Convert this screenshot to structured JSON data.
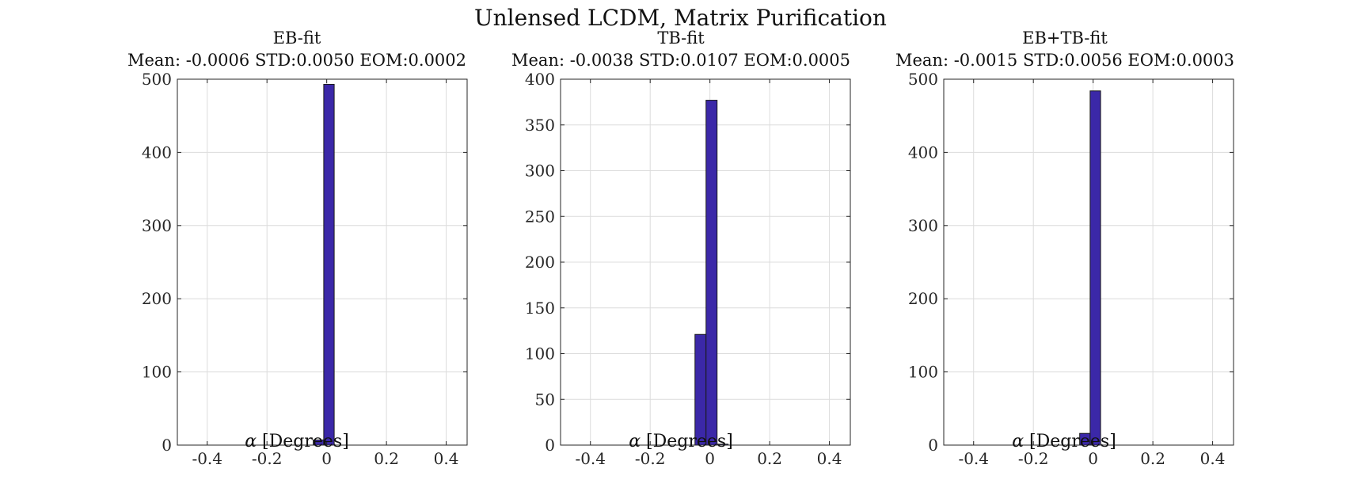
{
  "figure_title": "Unlensed LCDM, Matrix Purification",
  "chart_data": [
    {
      "type": "bar",
      "title": "EB-fit",
      "subtitle": "Mean: -0.0006 STD:0.0050 EOM:0.0002",
      "xlabel_symbol": "α",
      "xlabel": "[Degrees]",
      "ylabel": "",
      "xlim": [
        -0.5,
        0.47
      ],
      "ylim": [
        0,
        500
      ],
      "xticks": [
        -0.4,
        -0.2,
        0,
        0.2,
        0.4
      ],
      "xtick_labels": [
        "-0.4",
        "-0.2",
        "0",
        "0.2",
        "0.4"
      ],
      "yticks": [
        0,
        100,
        200,
        300,
        400,
        500
      ],
      "ytick_labels": [
        "0",
        "100",
        "200",
        "300",
        "400",
        "500"
      ],
      "grid": true,
      "bar_color": "#3b28a8",
      "bins": [
        {
          "x0": -0.045,
          "x1": -0.01,
          "value": 7
        },
        {
          "x0": -0.01,
          "x1": 0.025,
          "value": 493
        }
      ]
    },
    {
      "type": "bar",
      "title": "TB-fit",
      "subtitle": "Mean: -0.0038 STD:0.0107 EOM:0.0005",
      "xlabel_symbol": "α",
      "xlabel": "[Degrees]",
      "ylabel": "",
      "xlim": [
        -0.5,
        0.47
      ],
      "ylim": [
        0,
        400
      ],
      "xticks": [
        -0.4,
        -0.2,
        0,
        0.2,
        0.4
      ],
      "xtick_labels": [
        "-0.4",
        "-0.2",
        "0",
        "0.2",
        "0.4"
      ],
      "yticks": [
        0,
        50,
        100,
        150,
        200,
        250,
        300,
        350,
        400
      ],
      "ytick_labels": [
        "0",
        "50",
        "100",
        "150",
        "200",
        "250",
        "300",
        "350",
        "400"
      ],
      "grid": true,
      "bar_color": "#3b28a8",
      "bins": [
        {
          "x0": -0.05,
          "x1": -0.013,
          "value": 121
        },
        {
          "x0": -0.013,
          "x1": 0.024,
          "value": 377
        },
        {
          "x0": 0.024,
          "x1": 0.061,
          "value": 1
        }
      ]
    },
    {
      "type": "bar",
      "title": "EB+TB-fit",
      "subtitle": "Mean: -0.0015 STD:0.0056 EOM:0.0003",
      "xlabel_symbol": "α",
      "xlabel": "[Degrees]",
      "ylabel": "",
      "xlim": [
        -0.5,
        0.47
      ],
      "ylim": [
        0,
        500
      ],
      "xticks": [
        -0.4,
        -0.2,
        0,
        0.2,
        0.4
      ],
      "xtick_labels": [
        "-0.4",
        "-0.2",
        "0",
        "0.2",
        "0.4"
      ],
      "yticks": [
        0,
        100,
        200,
        300,
        400,
        500
      ],
      "ytick_labels": [
        "0",
        "100",
        "200",
        "300",
        "400",
        "500"
      ],
      "grid": true,
      "bar_color": "#3b28a8",
      "bins": [
        {
          "x0": -0.045,
          "x1": -0.01,
          "value": 16
        },
        {
          "x0": -0.01,
          "x1": 0.025,
          "value": 484
        }
      ]
    }
  ]
}
